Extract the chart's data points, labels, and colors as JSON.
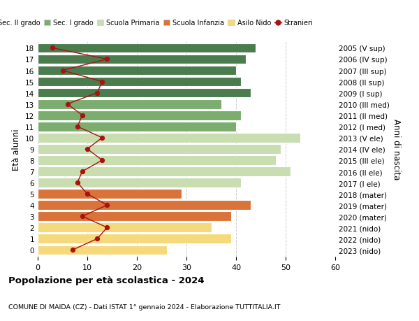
{
  "ages": [
    18,
    17,
    16,
    15,
    14,
    13,
    12,
    11,
    10,
    9,
    8,
    7,
    6,
    5,
    4,
    3,
    2,
    1,
    0
  ],
  "year_labels": [
    "2005 (V sup)",
    "2006 (IV sup)",
    "2007 (III sup)",
    "2008 (II sup)",
    "2009 (I sup)",
    "2010 (III med)",
    "2011 (II med)",
    "2012 (I med)",
    "2013 (V ele)",
    "2014 (IV ele)",
    "2015 (III ele)",
    "2016 (II ele)",
    "2017 (I ele)",
    "2018 (mater)",
    "2019 (mater)",
    "2020 (mater)",
    "2021 (nido)",
    "2022 (nido)",
    "2023 (nido)"
  ],
  "bar_values": [
    44,
    42,
    40,
    41,
    43,
    37,
    41,
    40,
    53,
    49,
    48,
    51,
    41,
    29,
    43,
    39,
    35,
    39,
    26
  ],
  "bar_colors": [
    "#4a7c4e",
    "#4a7c4e",
    "#4a7c4e",
    "#4a7c4e",
    "#4a7c4e",
    "#7aad6e",
    "#7aad6e",
    "#7aad6e",
    "#c8ddb0",
    "#c8ddb0",
    "#c8ddb0",
    "#c8ddb0",
    "#c8ddb0",
    "#d9733a",
    "#d9733a",
    "#d9733a",
    "#f5d97a",
    "#f5d97a",
    "#f5d97a"
  ],
  "stranieri_values": [
    3,
    14,
    5,
    13,
    12,
    6,
    9,
    8,
    13,
    10,
    13,
    9,
    8,
    10,
    14,
    9,
    14,
    12,
    7
  ],
  "stranieri_color": "#aa1111",
  "legend_labels": [
    "Sec. II grado",
    "Sec. I grado",
    "Scuola Primaria",
    "Scuola Infanzia",
    "Asilo Nido",
    "Stranieri"
  ],
  "legend_colors": [
    "#4a7c4e",
    "#7aad6e",
    "#c8ddb0",
    "#d9733a",
    "#f5d97a",
    "#aa1111"
  ],
  "ylabel_left": "Età alunni",
  "ylabel_right": "Anni di nascita",
  "title": "Popolazione per età scolastica - 2024",
  "subtitle": "COMUNE DI MAIDA (CZ) - Dati ISTAT 1° gennaio 2024 - Elaborazione TUTTITALIA.IT",
  "xlim": [
    0,
    60
  ],
  "xticks": [
    0,
    10,
    20,
    30,
    40,
    50,
    60
  ],
  "background_color": "#ffffff",
  "bar_edgecolor": "#ffffff",
  "grid_color": "#cccccc"
}
